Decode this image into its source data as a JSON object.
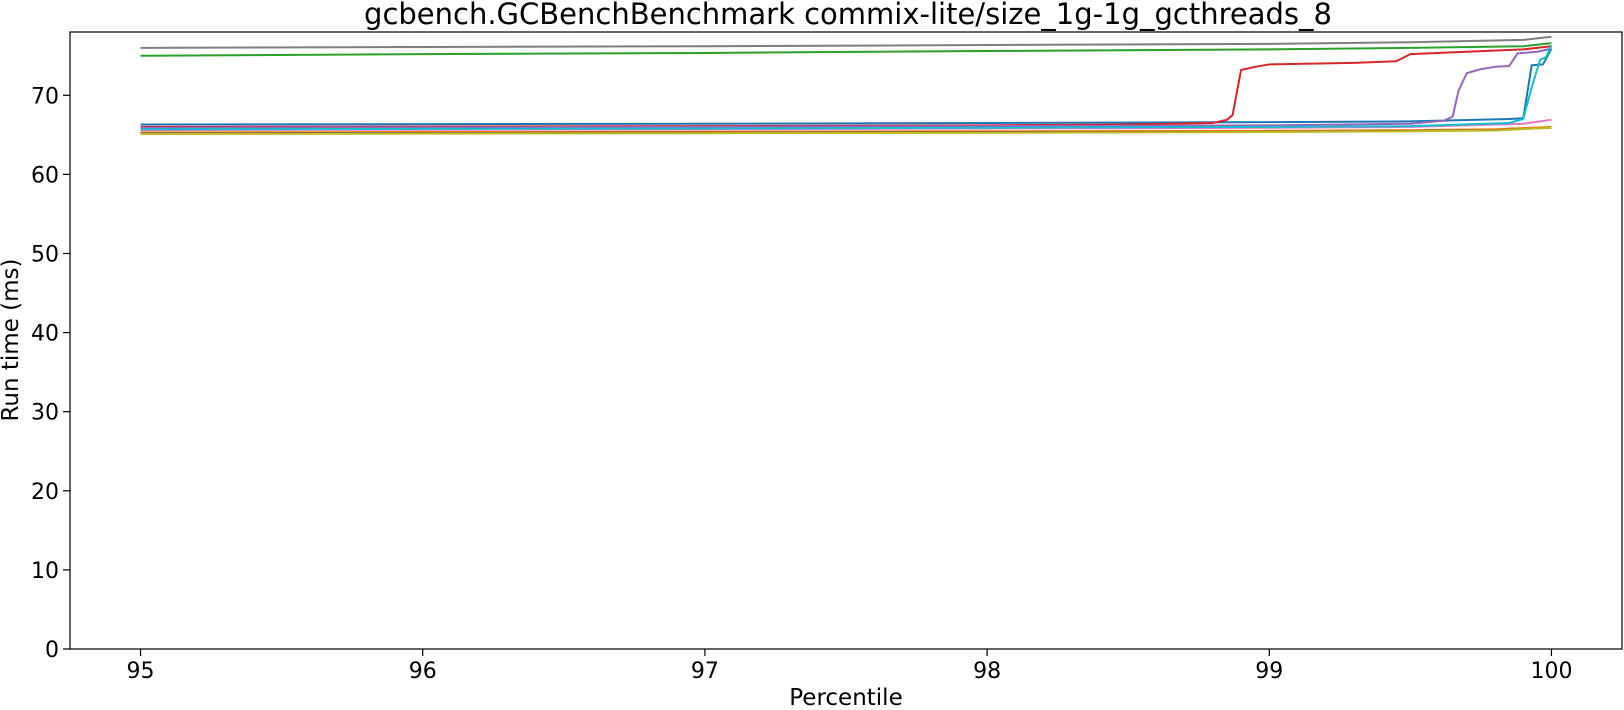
{
  "chart_data": {
    "type": "line",
    "title": "gcbench.GCBenchBenchmark commix-lite/size_1g-1g_gcthreads_8",
    "xlabel": "Percentile",
    "ylabel": "Run time (ms)",
    "xlim": [
      94.75,
      100.25
    ],
    "ylim": [
      0,
      78
    ],
    "xticks": [
      95,
      96,
      97,
      98,
      99,
      100
    ],
    "yticks": [
      0,
      10,
      20,
      30,
      40,
      50,
      60,
      70
    ],
    "xtick_labels": [
      "95",
      "96",
      "97",
      "98",
      "99",
      "100"
    ],
    "ytick_labels": [
      "0",
      "10",
      "20",
      "30",
      "40",
      "50",
      "60",
      "70"
    ],
    "grid": false,
    "legend": "none",
    "series": [
      {
        "color": "#1f77b4",
        "points": [
          [
            95,
            66.3
          ],
          [
            96,
            66.35
          ],
          [
            97,
            66.4
          ],
          [
            98,
            66.5
          ],
          [
            99,
            66.6
          ],
          [
            99.5,
            66.7
          ],
          [
            99.85,
            67.0
          ],
          [
            99.9,
            67.1
          ],
          [
            99.93,
            73.8
          ],
          [
            99.97,
            73.9
          ],
          [
            100,
            75.9
          ]
        ]
      },
      {
        "color": "#ff7f0e",
        "points": [
          [
            95,
            65.3
          ],
          [
            96,
            65.35
          ],
          [
            97,
            65.4
          ],
          [
            98,
            65.45
          ],
          [
            99,
            65.5
          ],
          [
            99.5,
            65.6
          ],
          [
            99.8,
            65.7
          ],
          [
            100,
            66.0
          ]
        ]
      },
      {
        "color": "#2ca02c",
        "points": [
          [
            95,
            75.0
          ],
          [
            96,
            75.2
          ],
          [
            97,
            75.35
          ],
          [
            98,
            75.6
          ],
          [
            99,
            75.8
          ],
          [
            99.5,
            76.0
          ],
          [
            99.9,
            76.2
          ],
          [
            100,
            76.6
          ]
        ]
      },
      {
        "color": "#d62728",
        "points": [
          [
            95,
            66.0
          ],
          [
            96,
            66.05
          ],
          [
            97,
            66.1
          ],
          [
            98,
            66.2
          ],
          [
            98.5,
            66.3
          ],
          [
            98.8,
            66.5
          ],
          [
            98.85,
            66.9
          ],
          [
            98.87,
            67.5
          ],
          [
            98.9,
            73.2
          ],
          [
            98.95,
            73.6
          ],
          [
            99.0,
            73.9
          ],
          [
            99.3,
            74.1
          ],
          [
            99.45,
            74.3
          ],
          [
            99.5,
            75.2
          ],
          [
            99.7,
            75.5
          ],
          [
            99.9,
            75.8
          ],
          [
            100,
            76.2
          ]
        ]
      },
      {
        "color": "#9467bd",
        "points": [
          [
            95,
            65.9
          ],
          [
            96,
            65.95
          ],
          [
            97,
            66.0
          ],
          [
            98,
            66.1
          ],
          [
            99,
            66.2
          ],
          [
            99.5,
            66.4
          ],
          [
            99.62,
            66.8
          ],
          [
            99.65,
            67.3
          ],
          [
            99.67,
            70.5
          ],
          [
            99.7,
            72.8
          ],
          [
            99.75,
            73.3
          ],
          [
            99.8,
            73.6
          ],
          [
            99.85,
            73.7
          ],
          [
            99.88,
            75.3
          ],
          [
            99.95,
            75.5
          ],
          [
            100,
            75.9
          ]
        ]
      },
      {
        "color": "#8c564b",
        "points": [
          [
            95,
            65.2
          ],
          [
            96,
            65.25
          ],
          [
            97,
            65.3
          ],
          [
            98,
            65.35
          ],
          [
            99,
            65.4
          ],
          [
            99.5,
            65.5
          ],
          [
            99.8,
            65.6
          ],
          [
            100,
            65.9
          ]
        ]
      },
      {
        "color": "#e377c2",
        "points": [
          [
            95,
            65.6
          ],
          [
            96,
            65.65
          ],
          [
            97,
            65.7
          ],
          [
            98,
            65.8
          ],
          [
            99,
            65.9
          ],
          [
            99.5,
            66.0
          ],
          [
            99.9,
            66.4
          ],
          [
            100,
            66.9
          ]
        ]
      },
      {
        "color": "#7f7f7f",
        "points": [
          [
            95,
            76.0
          ],
          [
            96,
            76.1
          ],
          [
            97,
            76.2
          ],
          [
            98,
            76.35
          ],
          [
            99,
            76.5
          ],
          [
            99.5,
            76.7
          ],
          [
            99.9,
            77.0
          ],
          [
            100,
            77.4
          ]
        ]
      },
      {
        "color": "#bcbd22",
        "points": [
          [
            95,
            65.1
          ],
          [
            96,
            65.15
          ],
          [
            97,
            65.2
          ],
          [
            98,
            65.25
          ],
          [
            99,
            65.35
          ],
          [
            99.5,
            65.45
          ],
          [
            99.8,
            65.55
          ],
          [
            100,
            65.9
          ]
        ]
      },
      {
        "color": "#17becf",
        "points": [
          [
            95,
            65.7
          ],
          [
            96,
            65.75
          ],
          [
            97,
            65.8
          ],
          [
            98,
            65.9
          ],
          [
            99,
            66.0
          ],
          [
            99.5,
            66.1
          ],
          [
            99.85,
            66.5
          ],
          [
            99.9,
            67.0
          ],
          [
            99.93,
            71.0
          ],
          [
            99.96,
            74.5
          ],
          [
            99.98,
            74.8
          ],
          [
            100,
            76.3
          ]
        ]
      }
    ]
  }
}
